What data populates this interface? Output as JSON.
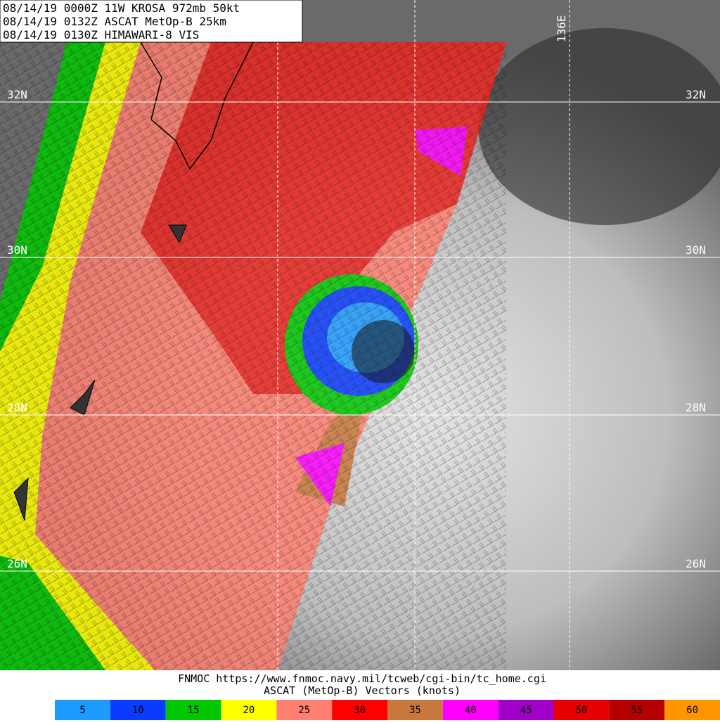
{
  "header": {
    "lines": [
      "08/14/19 0000Z  11W KROSA 972mb 50kt",
      "08/14/19 0132Z  ASCAT MetOp-B 25km",
      "08/14/19 0130Z  HIMAWARI-8 VIS"
    ]
  },
  "grid_labels": {
    "latitudes": [
      "32N",
      "30N",
      "28N",
      "26N"
    ],
    "longitude": "136E"
  },
  "footer": {
    "source": "FNMOC https://www.fnmoc.navy.mil/tcweb/cgi-bin/tc_home.cgi",
    "title": "ASCAT (MetOp-B) Vectors (knots)"
  },
  "legend": {
    "items": [
      {
        "value": 5,
        "color": "#1e9bff"
      },
      {
        "value": 10,
        "color": "#0a3cff"
      },
      {
        "value": 15,
        "color": "#00c800"
      },
      {
        "value": 20,
        "color": "#ffff00"
      },
      {
        "value": 25,
        "color": "#ff8070"
      },
      {
        "value": 30,
        "color": "#ff0000"
      },
      {
        "value": 35,
        "color": "#c8783c"
      },
      {
        "value": 40,
        "color": "#ff00ff"
      },
      {
        "value": 45,
        "color": "#a000c8"
      },
      {
        "value": 50,
        "color": "#e60000"
      },
      {
        "value": 55,
        "color": "#b40000"
      },
      {
        "value": 60,
        "color": "#ff9600"
      }
    ]
  }
}
